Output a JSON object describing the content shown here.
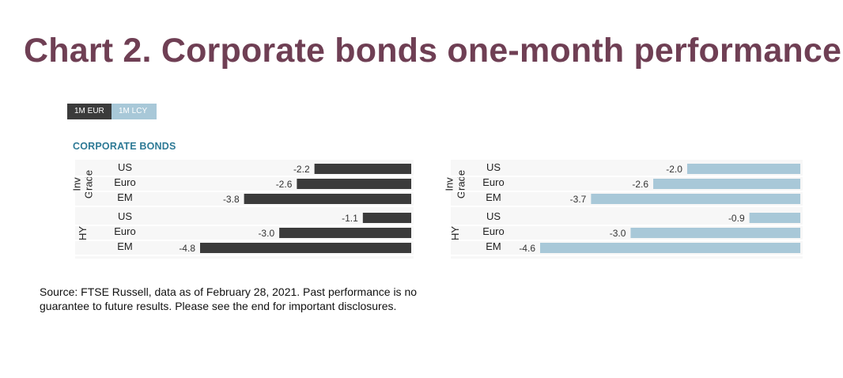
{
  "title": "Chart 2. Corporate bonds one-month performance",
  "tabs": [
    {
      "label": "1M EUR",
      "active": true
    },
    {
      "label": "1M LCY",
      "active": false
    }
  ],
  "section_label": "CORPORATE BONDS",
  "colors": {
    "title": "#6f3f54",
    "eur_bar": "#3b3b3b",
    "lcy_bar": "#a8c8d8",
    "section": "#2e7a96"
  },
  "chart_data": [
    {
      "type": "bar",
      "orientation": "horizontal",
      "name": "1M EUR",
      "groups": [
        {
          "label": "Inv Grade",
          "label_lines": [
            "Inv",
            "Grade"
          ],
          "categories": [
            "US",
            "Euro",
            "EM"
          ],
          "values": [
            -2.2,
            -2.6,
            -3.8
          ]
        },
        {
          "label": "HY",
          "label_lines": [
            "HY"
          ],
          "categories": [
            "US",
            "Euro",
            "EM"
          ],
          "values": [
            -1.1,
            -3.0,
            -4.8
          ]
        }
      ],
      "value_labels": [
        "-2.2",
        "-2.6",
        "-3.8",
        "-1.1",
        "-3.0",
        "-4.8"
      ],
      "xlim": [
        -4.8,
        0
      ],
      "color": "#3b3b3b"
    },
    {
      "type": "bar",
      "orientation": "horizontal",
      "name": "1M LCY",
      "groups": [
        {
          "label": "Inv Grade",
          "label_lines": [
            "Inv",
            "Grade"
          ],
          "categories": [
            "US",
            "Euro",
            "EM"
          ],
          "values": [
            -2.0,
            -2.6,
            -3.7
          ]
        },
        {
          "label": "HY",
          "label_lines": [
            "HY"
          ],
          "categories": [
            "US",
            "Euro",
            "EM"
          ],
          "values": [
            -0.9,
            -3.0,
            -4.6
          ]
        }
      ],
      "value_labels": [
        "-2.0",
        "-2.6",
        "-3.7",
        "-0.9",
        "-3.0",
        "-4.6"
      ],
      "xlim": [
        -4.6,
        0
      ],
      "color": "#a8c8d8"
    }
  ],
  "source": "Source: FTSE Russell, data as of February 28, 2021. Past performance is no guarantee to future results. Please see the end for important disclosures."
}
